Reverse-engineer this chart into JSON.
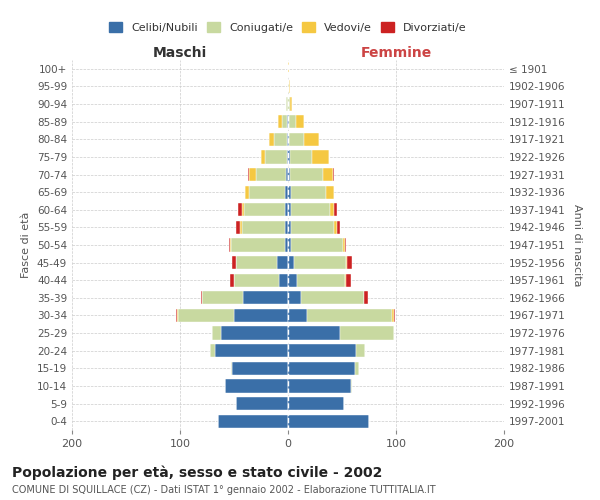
{
  "age_groups": [
    "0-4",
    "5-9",
    "10-14",
    "15-19",
    "20-24",
    "25-29",
    "30-34",
    "35-39",
    "40-44",
    "45-49",
    "50-54",
    "55-59",
    "60-64",
    "65-69",
    "70-74",
    "75-79",
    "80-84",
    "85-89",
    "90-94",
    "95-99",
    "100+"
  ],
  "birth_years": [
    "1997-2001",
    "1992-1996",
    "1987-1991",
    "1982-1986",
    "1977-1981",
    "1972-1976",
    "1967-1971",
    "1962-1966",
    "1957-1961",
    "1952-1956",
    "1947-1951",
    "1942-1946",
    "1937-1941",
    "1932-1936",
    "1927-1931",
    "1922-1926",
    "1917-1921",
    "1912-1916",
    "1907-1911",
    "1902-1906",
    "≤ 1901"
  ],
  "males": {
    "celibe": [
      65,
      48,
      58,
      52,
      68,
      62,
      50,
      42,
      8,
      10,
      3,
      3,
      3,
      3,
      2,
      1,
      1,
      1,
      0,
      0,
      0
    ],
    "coniugato": [
      0,
      0,
      0,
      1,
      4,
      8,
      52,
      38,
      42,
      38,
      50,
      40,
      38,
      33,
      28,
      20,
      12,
      5,
      2,
      0,
      0
    ],
    "vedovo": [
      0,
      0,
      0,
      0,
      0,
      0,
      1,
      0,
      0,
      0,
      1,
      1,
      2,
      4,
      6,
      4,
      5,
      3,
      0,
      0,
      0
    ],
    "divorziato": [
      0,
      0,
      0,
      0,
      0,
      0,
      1,
      1,
      4,
      4,
      1,
      4,
      3,
      0,
      1,
      0,
      0,
      0,
      0,
      0,
      0
    ]
  },
  "females": {
    "nubile": [
      75,
      52,
      58,
      62,
      63,
      48,
      18,
      12,
      8,
      6,
      3,
      3,
      3,
      3,
      2,
      2,
      1,
      1,
      0,
      0,
      0
    ],
    "coniugata": [
      0,
      0,
      1,
      4,
      8,
      50,
      78,
      58,
      45,
      48,
      48,
      40,
      36,
      32,
      30,
      20,
      14,
      6,
      2,
      1,
      0
    ],
    "vedova": [
      0,
      0,
      0,
      0,
      0,
      0,
      2,
      0,
      1,
      1,
      2,
      2,
      4,
      8,
      10,
      16,
      14,
      8,
      2,
      1,
      1
    ],
    "divorziata": [
      0,
      0,
      0,
      0,
      0,
      0,
      1,
      4,
      4,
      4,
      1,
      3,
      2,
      0,
      1,
      0,
      0,
      0,
      0,
      0,
      0
    ]
  },
  "colors": {
    "celibe_nubile": "#3a6fa8",
    "coniugato_a": "#c8d9a0",
    "vedovo_a": "#f5c842",
    "divorziato_a": "#cc2222"
  },
  "xlim": 200,
  "title": "Popolazione per età, sesso e stato civile - 2002",
  "subtitle": "COMUNE DI SQUILLACE (CZ) - Dati ISTAT 1° gennaio 2002 - Elaborazione TUTTITALIA.IT",
  "ylabel_left": "Fasce di età",
  "ylabel_right": "Anni di nascita",
  "xlabel_left": "Maschi",
  "xlabel_right": "Femmine",
  "bg_color": "#ffffff",
  "grid_color": "#cccccc"
}
